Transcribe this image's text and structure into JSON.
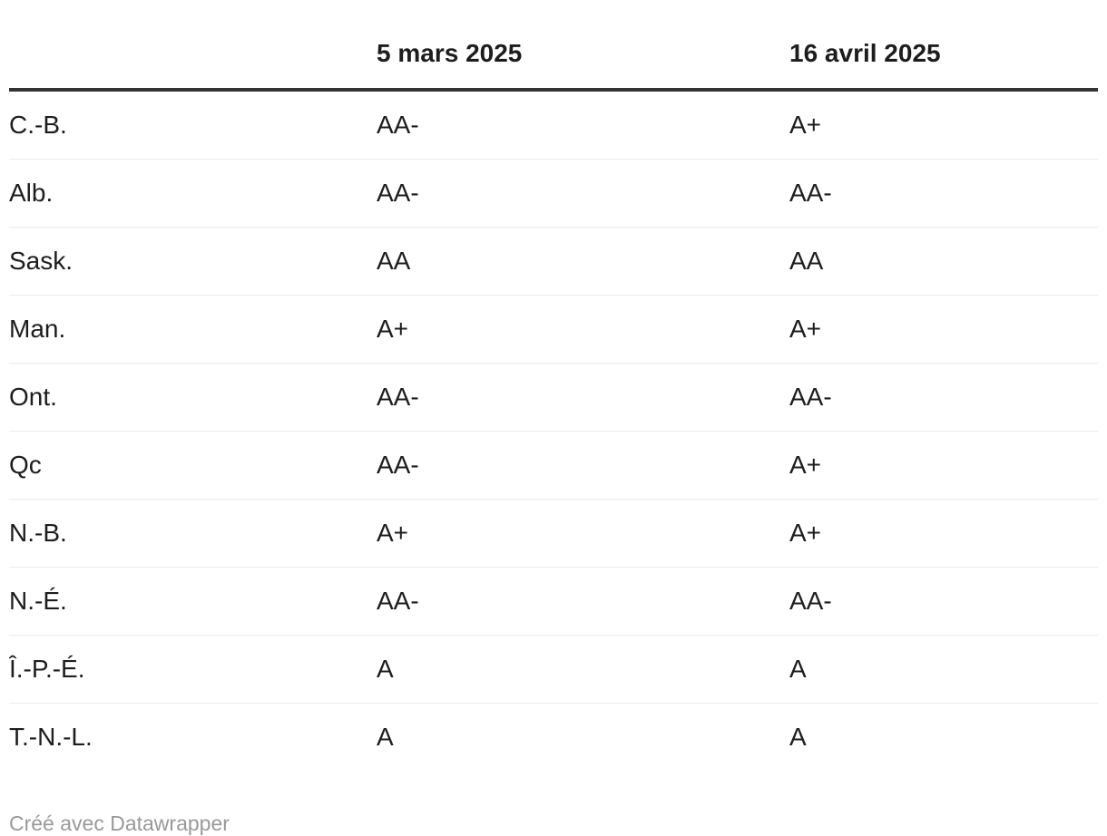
{
  "chart_data": {
    "type": "table",
    "columns": [
      "",
      "5 mars 2025",
      "16 avril 2025"
    ],
    "rows": [
      [
        "C.-B.",
        "AA-",
        "A+"
      ],
      [
        "Alb.",
        "AA-",
        "AA-"
      ],
      [
        "Sask.",
        "AA",
        "AA"
      ],
      [
        "Man.",
        "A+",
        "A+"
      ],
      [
        "Ont.",
        "AA-",
        "AA-"
      ],
      [
        "Qc",
        "AA-",
        "A+"
      ],
      [
        "N.-B.",
        "A+",
        "A+"
      ],
      [
        "N.-É.",
        "AA-",
        "AA-"
      ],
      [
        "Î.-P.-É.",
        "A",
        "A"
      ],
      [
        "T.-N.-L.",
        "A",
        "A"
      ]
    ],
    "title": "",
    "legend_position": "none",
    "grid": "horizontal-dividers"
  },
  "footer": {
    "attribution": "Créé avec Datawrapper"
  },
  "colors": {
    "background": "#ffffff",
    "text": "#1d1d1d",
    "header_rule": "#333333",
    "row_divider": "#ebebeb",
    "footer_text": "#999999"
  }
}
